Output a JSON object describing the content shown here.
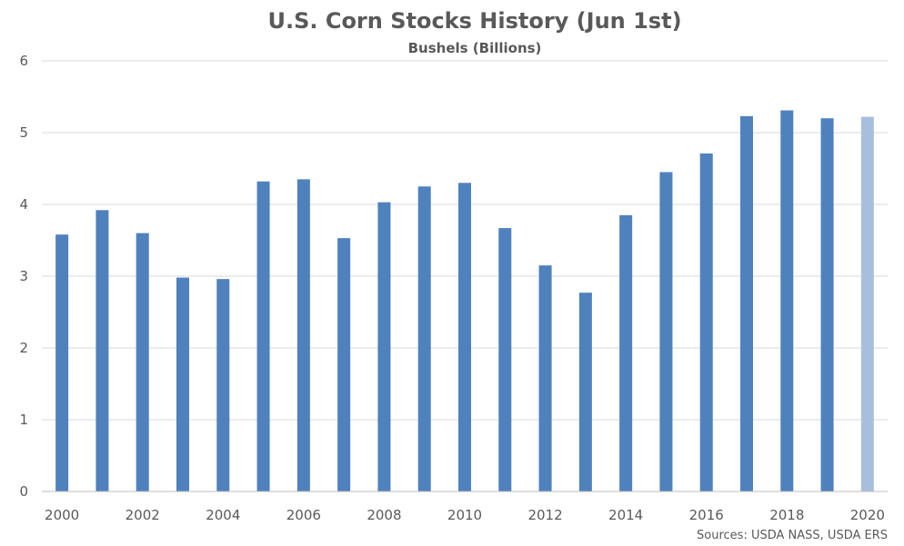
{
  "chart_data": {
    "type": "bar",
    "title": "U.S. Corn Stocks History (Jun 1st)",
    "subtitle": "Bushels (Billions)",
    "source": "Sources: USDA NASS, USDA ERS",
    "categories": [
      "2000",
      "2001",
      "2002",
      "2003",
      "2004",
      "2005",
      "2006",
      "2007",
      "2008",
      "2009",
      "2010",
      "2011",
      "2012",
      "2013",
      "2014",
      "2015",
      "2016",
      "2017",
      "2018",
      "2019",
      "2020"
    ],
    "x_tick_labels": [
      "2000",
      "2002",
      "2004",
      "2006",
      "2008",
      "2010",
      "2012",
      "2014",
      "2016",
      "2018",
      "2020"
    ],
    "values": [
      3.58,
      3.92,
      3.6,
      2.98,
      2.96,
      4.32,
      4.35,
      3.53,
      4.03,
      4.25,
      4.3,
      3.67,
      3.15,
      2.77,
      3.85,
      4.45,
      4.71,
      5.23,
      5.31,
      5.2,
      5.22
    ],
    "y_ticks": [
      0,
      1,
      2,
      3,
      4,
      5,
      6
    ],
    "ylim": [
      0,
      6
    ],
    "grid": true,
    "legend": "none",
    "colors": {
      "bar": "#4f81bd",
      "bar_highlight": "#a7bfdf",
      "grid": "#d9d9d9",
      "text": "#595959"
    },
    "highlight_category": "2020"
  }
}
